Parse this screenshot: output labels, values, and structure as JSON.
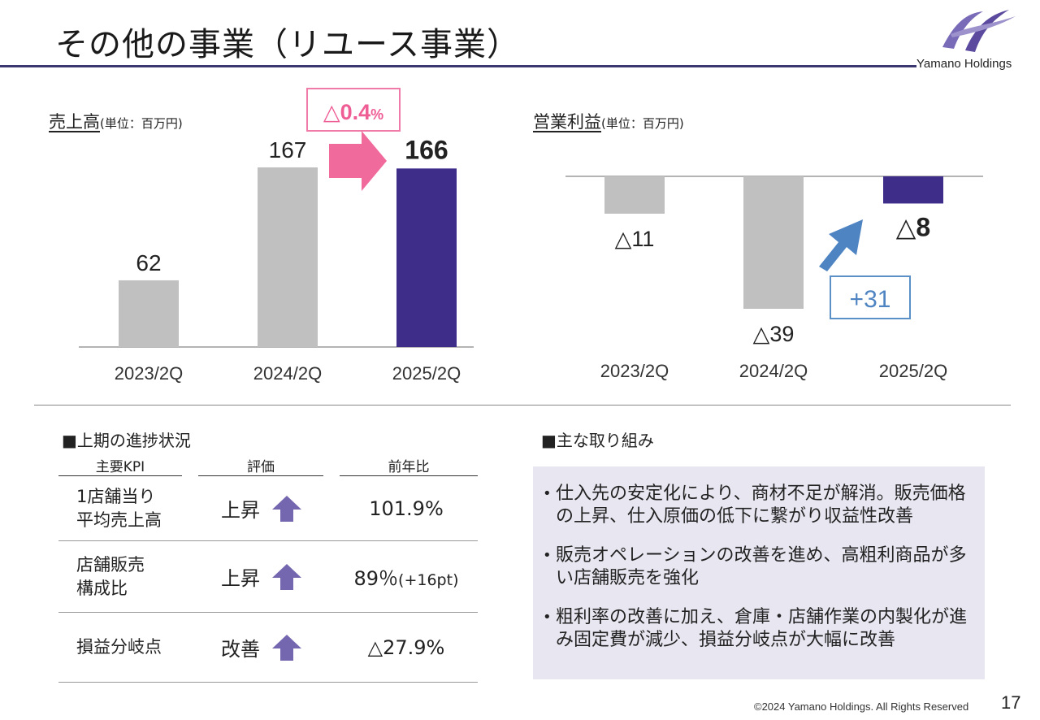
{
  "header": {
    "title": "その他の事業（リユース事業）",
    "brand_name": "Yamano Holdings"
  },
  "sales_chart": {
    "title": "売上高",
    "unit": "(単位：百万円)",
    "change_badge": "△0.4",
    "change_badge_unit": "%",
    "colors": {
      "prior": "#c0c0c0",
      "current": "#3f2d8a",
      "arrow": "#f06a9c",
      "badge_border": "#f07aa8",
      "badge_text": "#ef5d95"
    }
  },
  "profit_chart": {
    "title": "営業利益",
    "unit": "(単位：百万円)",
    "change_badge": "+31",
    "colors": {
      "prior": "#c0c0c0",
      "current": "#3f2d8a",
      "arrow": "#4f84c3",
      "badge_border": "#5a8fc8",
      "badge_text": "#4f84c3"
    }
  },
  "chart_data": [
    {
      "type": "bar",
      "title": "売上高",
      "categories": [
        "2023/2Q",
        "2024/2Q",
        "2025/2Q"
      ],
      "values": [
        62,
        167,
        166
      ],
      "labels": [
        "62",
        "167",
        "166"
      ],
      "ylim": [
        0,
        200
      ]
    },
    {
      "type": "bar",
      "title": "営業利益",
      "categories": [
        "2023/2Q",
        "2024/2Q",
        "2025/2Q"
      ],
      "values": [
        -11,
        -39,
        -8
      ],
      "labels": [
        "△11",
        "△39",
        "△8"
      ],
      "ylim": [
        -45,
        0
      ]
    }
  ],
  "progress": {
    "heading": "■上期の進捗状況",
    "columns": [
      "主要KPI",
      "評価",
      "前年比"
    ],
    "rows": [
      {
        "name": "1店舗当り\n平均売上高",
        "eval": "上昇",
        "yoy": "101.9%",
        "yoy_sub": ""
      },
      {
        "name": "店舗販売\n構成比",
        "eval": "上昇",
        "yoy": "89％",
        "yoy_sub": "(+16pt)"
      },
      {
        "name": "損益分岐点",
        "eval": "改善",
        "yoy": "△27.9%",
        "yoy_sub": ""
      }
    ],
    "arrow_color": "#7566b0"
  },
  "initiatives": {
    "heading": "■主な取り組み",
    "items": [
      "仕入先の安定化により、商材不足が解消。販売価格の上昇、仕入原価の低下に繋がり収益性改善",
      "販売オペレーションの改善を進め、高粗利商品が多い店舗販売を強化",
      "粗利率の改善に加え、倉庫・店舗作業の内製化が進み固定費が減少、損益分岐点が大幅に改善"
    ],
    "bullet": "•"
  },
  "footer": {
    "copyright": "©2024 Yamano Holdings. All Rights Reserved",
    "page_number": "17"
  }
}
